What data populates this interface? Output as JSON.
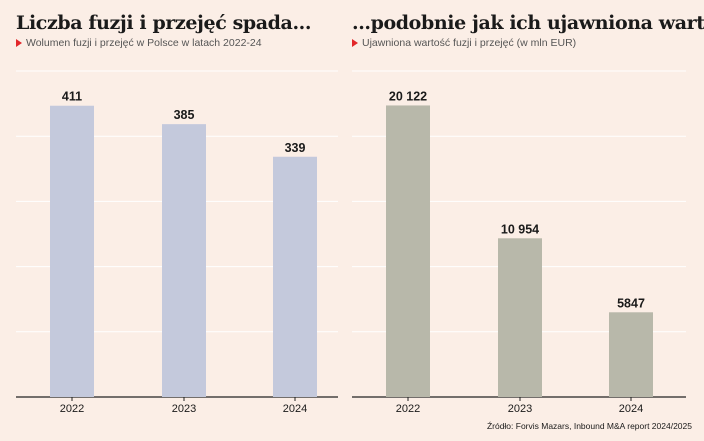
{
  "chart_data": [
    {
      "type": "bar",
      "title": "Liczba fuzji i przejęć spada...",
      "subtitle": "Wolumen fuzji i przejęć w Polsce w latach 2022-24",
      "categories": [
        "2022",
        "2023",
        "2024"
      ],
      "values": [
        411,
        385,
        339
      ],
      "value_labels": [
        "411",
        "385",
        "339"
      ],
      "ylim": [
        0,
        460
      ],
      "grid": true,
      "color": "#c4c9dc"
    },
    {
      "type": "bar",
      "title": "...podobnie jak ich ujawniona wartość",
      "subtitle": "Ujawniona wartość fuzji i przejęć (w mln EUR)",
      "categories": [
        "2022",
        "2023",
        "2024"
      ],
      "values": [
        20122,
        10954,
        5847
      ],
      "value_labels": [
        "20 122",
        "10 954",
        "5847"
      ],
      "ylim": [
        0,
        22500
      ],
      "grid": true,
      "color": "#b8b8aa"
    }
  ],
  "source": "Źródło: Forvis Mazars, Inbound M&A report 2024/2025",
  "colors": {
    "accent": "#e2262a",
    "background": "#fbeee6"
  }
}
